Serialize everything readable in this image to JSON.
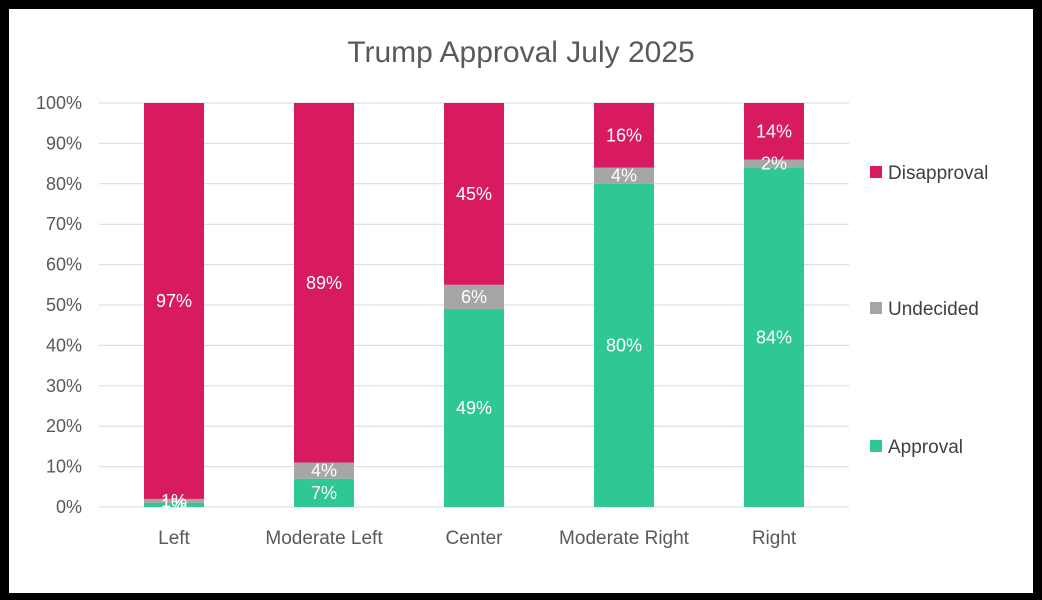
{
  "chart_data": {
    "type": "bar",
    "stacked": true,
    "title": "Trump Approval July 2025",
    "categories": [
      "Left",
      "Moderate Left",
      "Center",
      "Moderate Right",
      "Right"
    ],
    "series": [
      {
        "name": "Approval",
        "color": "#2ec795",
        "values": [
          1,
          7,
          49,
          80,
          84
        ],
        "labels": [
          "1%",
          "7%",
          "49%",
          "80%",
          "84%"
        ]
      },
      {
        "name": "Undecided",
        "color": "#a6a6a6",
        "values": [
          1,
          4,
          6,
          4,
          2
        ],
        "labels": [
          "1%",
          "4%",
          "6%",
          "4%",
          "2%"
        ]
      },
      {
        "name": "Disapproval",
        "color": "#d81b60",
        "values": [
          97,
          89,
          45,
          16,
          14
        ],
        "labels": [
          "97%",
          "89%",
          "45%",
          "16%",
          "14%"
        ]
      }
    ],
    "ylim": [
      0,
      100
    ],
    "yticks": [
      "0%",
      "10%",
      "20%",
      "30%",
      "40%",
      "50%",
      "60%",
      "70%",
      "80%",
      "90%",
      "100%"
    ],
    "grid": true,
    "legend": {
      "position": "right",
      "order": [
        "Disapproval",
        "Undecided",
        "Approval"
      ]
    }
  }
}
